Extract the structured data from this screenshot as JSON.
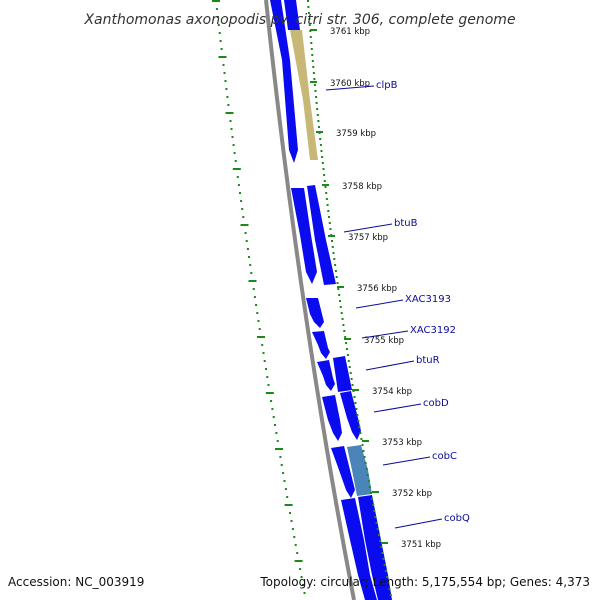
{
  "title": "Xanthomonas axonopodis pv. citri str. 306, complete genome",
  "footer": {
    "accession": "Accession: NC_003919",
    "summary": "Topology: circular; Length: 5,175,554 bp; Genes: 4,373"
  },
  "colors": {
    "cds": "#0b0bf0",
    "cds_highlight_tan": "#c8b878",
    "cds_highlight_teal": "#4a84b8",
    "backbone": "#888888",
    "gc_ticks": "#1a8a1a",
    "label": "#0a0a9a"
  },
  "ticks": [
    "3761 kbp",
    "3760 kbp",
    "3759 kbp",
    "3758 kbp",
    "3757 kbp",
    "3756 kbp",
    "3755 kbp",
    "3754 kbp",
    "3753 kbp",
    "3752 kbp",
    "3751 kbp"
  ],
  "genes": [
    "clpB",
    "btuB",
    "XAC3193",
    "XAC3192",
    "btuR",
    "cobD",
    "cobC",
    "cobQ"
  ]
}
